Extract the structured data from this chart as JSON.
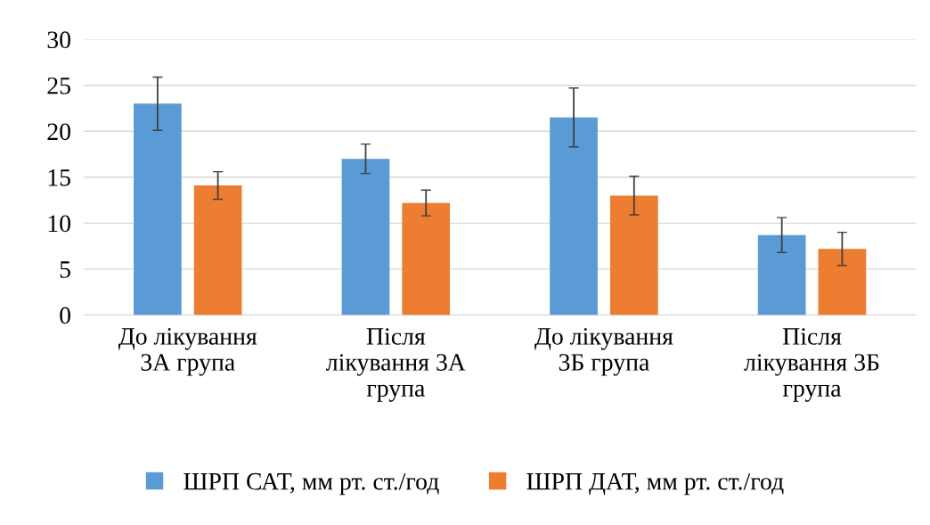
{
  "chart_data": {
    "type": "bar",
    "categories": [
      "До лікування\n3А група",
      "Після\nлікування 3А\nгрупа",
      "До лікування\n3Б група",
      "Після\nлікування 3Б\nгрупа"
    ],
    "series": [
      {
        "name": "ШРП САТ, мм рт. ст./год",
        "color": "#5b9bd5",
        "values": [
          23.0,
          17.0,
          21.5,
          8.7
        ],
        "errors": [
          2.9,
          1.6,
          3.2,
          1.9
        ]
      },
      {
        "name": "ШРП ДАТ, мм рт. ст./год",
        "color": "#ed7d31",
        "values": [
          14.1,
          12.2,
          13.0,
          7.2
        ],
        "errors": [
          1.5,
          1.4,
          2.1,
          1.8
        ]
      }
    ],
    "ylim": [
      0,
      30
    ],
    "yticks": [
      0,
      5,
      10,
      15,
      20,
      25,
      30
    ],
    "grid": "y",
    "legend": "bottom"
  }
}
